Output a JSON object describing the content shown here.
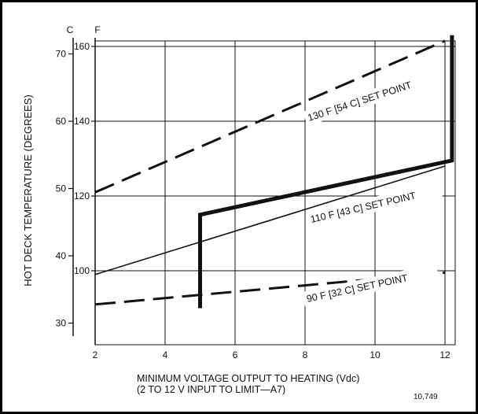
{
  "chart_data": {
    "type": "line",
    "title": "",
    "xlabel": "MINIMUM VOLTAGE OUTPUT TO HEATING (Vdc)",
    "xlabel_sub": "(2 TO 12 V INPUT TO LIMIT—A7)",
    "ylabel": "HOT DECK TEMPERATURE (DEGREES)",
    "y_unit_c": "C",
    "y_unit_f": "F",
    "xlim": [
      2,
      12.4
    ],
    "ylim_f": [
      90,
      162
    ],
    "x_ticks": [
      "2",
      "4",
      "6",
      "8",
      "10",
      "12"
    ],
    "x_tick_values": [
      2,
      4,
      6,
      8,
      10,
      12
    ],
    "y_ticks_f": [
      "100",
      "120",
      "140",
      "160"
    ],
    "y_tick_values_f": [
      100,
      120,
      140,
      160
    ],
    "y_ticks_c": [
      "30",
      "40",
      "50",
      "60",
      "70"
    ],
    "y_tick_values_c": [
      30,
      40,
      50,
      60,
      70
    ],
    "grid": true,
    "figure_number": "10,749",
    "series": [
      {
        "name": "130 F [54 C] SET POINT",
        "style": "dashed",
        "x": [
          2,
          12
        ],
        "y": [
          121,
          161.5
        ]
      },
      {
        "name": "110 F [43 C] SET POINT",
        "style": "thin",
        "x": [
          2,
          12
        ],
        "y": [
          99,
          128
        ]
      },
      {
        "name": "90 F [32 C] SET POINT",
        "style": "dashed",
        "x": [
          2,
          12
        ],
        "y": [
          91,
          99.5
        ]
      },
      {
        "name": "",
        "style": "heavy",
        "x": [
          5,
          5,
          12.2,
          12.2
        ],
        "y": [
          90,
          115,
          129.5,
          163
        ]
      }
    ]
  }
}
